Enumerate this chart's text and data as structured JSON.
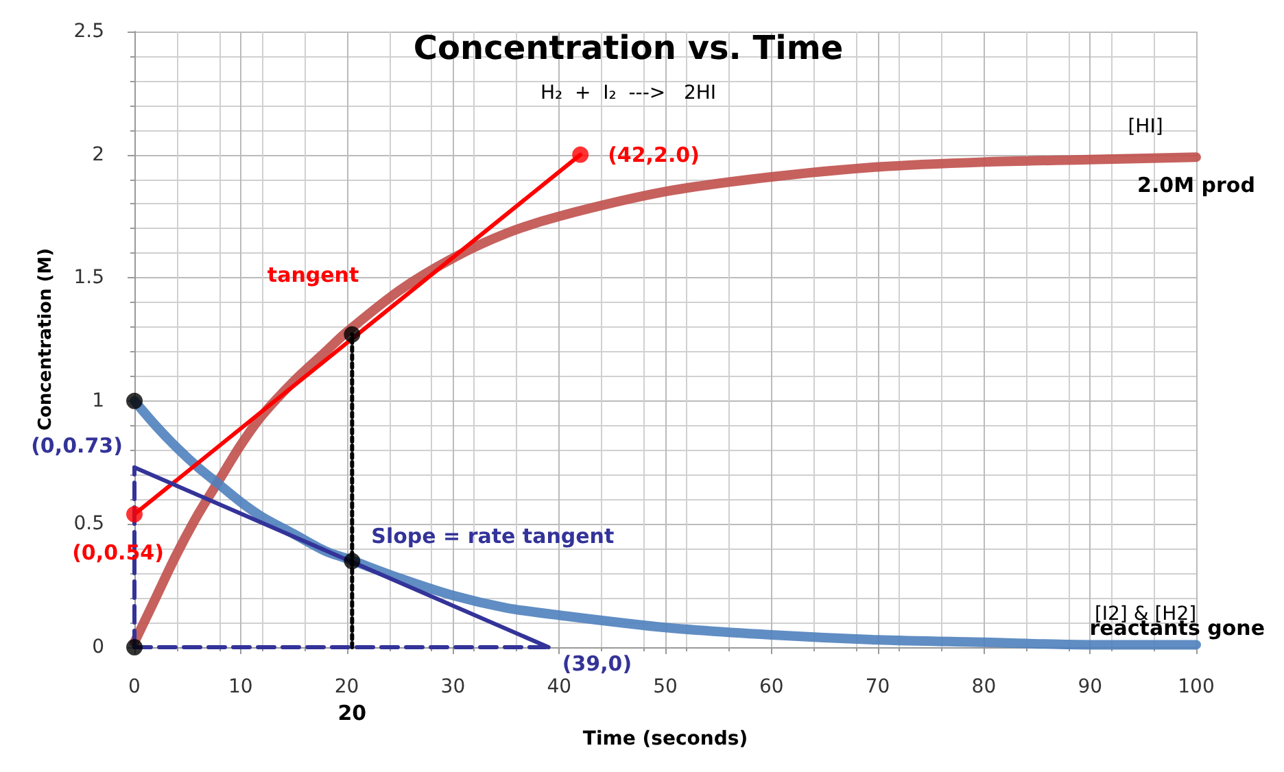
{
  "chart_data": {
    "type": "line",
    "title": "Concentration vs. Time",
    "subtitle": "H₂  +  I₂  --->   2HI",
    "xlabel": "Time (seconds)",
    "ylabel": "Concentration (M)",
    "x": [
      0,
      2,
      4,
      6,
      8,
      10,
      12,
      15,
      18,
      20,
      25,
      30,
      35,
      40,
      50,
      60,
      70,
      80,
      90,
      100
    ],
    "series": [
      {
        "name": "[HI]",
        "color": "#c0504d",
        "values": [
          0.02,
          0.2,
          0.38,
          0.54,
          0.68,
          0.82,
          0.94,
          1.08,
          1.2,
          1.28,
          1.45,
          1.58,
          1.68,
          1.75,
          1.85,
          1.91,
          1.95,
          1.97,
          1.98,
          1.99
        ]
      },
      {
        "name": "[I2] & [H2]",
        "color": "#4f81bd",
        "values": [
          1,
          0.9,
          0.81,
          0.73,
          0.66,
          0.59,
          0.53,
          0.46,
          0.39,
          0.36,
          0.28,
          0.21,
          0.16,
          0.13,
          0.08,
          0.05,
          0.03,
          0.02,
          0.01,
          0.01
        ]
      },
      {
        "color": "#ff0000",
        "x": [
          0,
          42
        ],
        "values": [
          0.54,
          2.0
        ]
      },
      {
        "color": "#333399",
        "x": [
          0,
          39
        ],
        "values": [
          0.73,
          0
        ]
      },
      {
        "color": "#000000",
        "x": [
          20.5,
          20.5
        ],
        "values": [
          0,
          1.27
        ],
        "line_style": "dotted"
      },
      {
        "color": "#333399",
        "x": [
          0,
          39
        ],
        "values": [
          0,
          0
        ],
        "line_style": "dashed"
      },
      {
        "color": "#333399",
        "x": [
          0,
          0
        ],
        "values": [
          0,
          0.73
        ],
        "line_style": "dashed"
      },
      {
        "type": "scatter",
        "marker": "circle",
        "color": "#000000",
        "x": [
          0,
          0,
          20.5,
          20.5
        ],
        "values": [
          1,
          0,
          1.27,
          0.35
        ]
      },
      {
        "type": "scatter",
        "marker": "circle",
        "color": "#ff0000",
        "x": [
          0,
          42
        ],
        "values": [
          0.54,
          2.0
        ]
      }
    ],
    "xlim": [
      0,
      100
    ],
    "xticks": [
      0,
      10,
      20,
      30,
      40,
      50,
      60,
      70,
      80,
      90,
      100
    ],
    "ylim": [
      0,
      2.5
    ],
    "yticks": [
      0,
      0.5,
      1,
      1.5,
      2,
      2.5
    ],
    "grid": true,
    "legend": false,
    "marker": "none",
    "line_style": "solid",
    "annotations": [
      {
        "text": "(42,2.0)",
        "x": 42,
        "y": 2.0
      },
      {
        "text": "tangent",
        "x": 22,
        "y": 1.4
      },
      {
        "text": "(0,0.54)",
        "x": 0,
        "y": 0.54
      },
      {
        "text": "(0,0.73)",
        "x": 0,
        "y": 0.73
      },
      {
        "text": "Slope = rate tangent",
        "x": 20.5,
        "y": 0.35
      },
      {
        "text": "(39,0)",
        "x": 39,
        "y": 0
      },
      {
        "text": "2.0M prod",
        "x": 100,
        "y": 2.0
      },
      {
        "text": "reactants gone",
        "x": 100,
        "y": 0
      },
      {
        "text": "20",
        "x": 20.5,
        "y": 0
      }
    ]
  }
}
